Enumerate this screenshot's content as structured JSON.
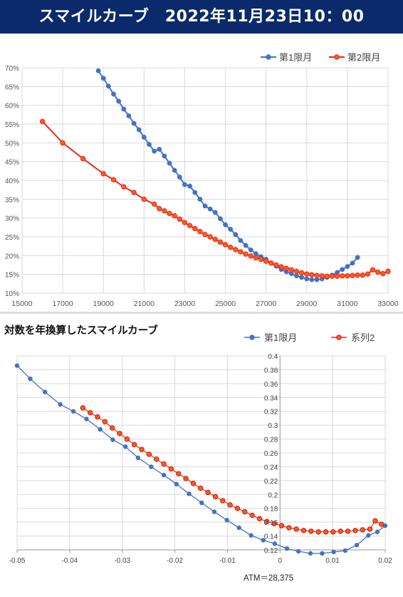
{
  "header": {
    "title": "スマイルカーブ　2022年11月23日10：00"
  },
  "colors": {
    "header_bg": "#0a2a6b",
    "series_blue": "#4472c4",
    "series_red": "#e8281a",
    "marker_orange": "#ff5a1e",
    "grid": "#d9d9d9"
  },
  "chart_data": [
    {
      "type": "line",
      "title": "",
      "xlabel": "",
      "ylabel": "",
      "xlim": [
        15000,
        33000
      ],
      "ylim": [
        0.1,
        0.7
      ],
      "x_ticks": [
        "15000",
        "17000",
        "19000",
        "21000",
        "23000",
        "25000",
        "27000",
        "29000",
        "31000",
        "33000"
      ],
      "y_ticks": [
        "10%",
        "15%",
        "20%",
        "25%",
        "30%",
        "35%",
        "40%",
        "45%",
        "50%",
        "55%",
        "60%",
        "65%",
        "70%"
      ],
      "grid": true,
      "legend_position": "top-right",
      "series": [
        {
          "name": "第1限月",
          "color": "#4472c4",
          "points": [
            [
              18750,
              0.692
            ],
            [
              19000,
              0.672
            ],
            [
              19250,
              0.651
            ],
            [
              19500,
              0.63
            ],
            [
              19750,
              0.611
            ],
            [
              20000,
              0.59
            ],
            [
              20250,
              0.572
            ],
            [
              20500,
              0.552
            ],
            [
              20750,
              0.535
            ],
            [
              21000,
              0.515
            ],
            [
              21250,
              0.496
            ],
            [
              21500,
              0.478
            ],
            [
              21750,
              0.483
            ],
            [
              22000,
              0.465
            ],
            [
              22250,
              0.446
            ],
            [
              22500,
              0.427
            ],
            [
              22750,
              0.409
            ],
            [
              23000,
              0.389
            ],
            [
              23250,
              0.385
            ],
            [
              23500,
              0.368
            ],
            [
              23750,
              0.35
            ],
            [
              24000,
              0.332
            ],
            [
              24250,
              0.324
            ],
            [
              24500,
              0.315
            ],
            [
              24750,
              0.298
            ],
            [
              25000,
              0.282
            ],
            [
              25250,
              0.27
            ],
            [
              25500,
              0.256
            ],
            [
              25750,
              0.24
            ],
            [
              26000,
              0.227
            ],
            [
              26250,
              0.215
            ],
            [
              26500,
              0.205
            ],
            [
              26750,
              0.197
            ],
            [
              27000,
              0.19
            ],
            [
              27250,
              0.18
            ],
            [
              27500,
              0.172
            ],
            [
              27750,
              0.163
            ],
            [
              28000,
              0.157
            ],
            [
              28250,
              0.152
            ],
            [
              28500,
              0.146
            ],
            [
              28750,
              0.142
            ],
            [
              29000,
              0.138
            ],
            [
              29250,
              0.136
            ],
            [
              29500,
              0.136
            ],
            [
              29750,
              0.138
            ],
            [
              30000,
              0.142
            ],
            [
              30250,
              0.148
            ],
            [
              30500,
              0.155
            ],
            [
              30750,
              0.163
            ],
            [
              31000,
              0.171
            ],
            [
              31250,
              0.18
            ],
            [
              31500,
              0.195
            ]
          ]
        },
        {
          "name": "第2限月",
          "color": "#e8281a",
          "points": [
            [
              16000,
              0.557
            ],
            [
              17000,
              0.5
            ],
            [
              18000,
              0.458
            ],
            [
              19000,
              0.418
            ],
            [
              19500,
              0.402
            ],
            [
              20000,
              0.383
            ],
            [
              20500,
              0.368
            ],
            [
              21000,
              0.35
            ],
            [
              21500,
              0.337
            ],
            [
              21750,
              0.325
            ],
            [
              22000,
              0.319
            ],
            [
              22250,
              0.312
            ],
            [
              22500,
              0.306
            ],
            [
              22750,
              0.297
            ],
            [
              23000,
              0.288
            ],
            [
              23250,
              0.28
            ],
            [
              23500,
              0.272
            ],
            [
              23750,
              0.264
            ],
            [
              24000,
              0.256
            ],
            [
              24250,
              0.25
            ],
            [
              24500,
              0.243
            ],
            [
              24750,
              0.236
            ],
            [
              25000,
              0.229
            ],
            [
              25250,
              0.222
            ],
            [
              25500,
              0.216
            ],
            [
              25750,
              0.21
            ],
            [
              26000,
              0.204
            ],
            [
              26250,
              0.199
            ],
            [
              26500,
              0.194
            ],
            [
              26750,
              0.19
            ],
            [
              27000,
              0.185
            ],
            [
              27250,
              0.18
            ],
            [
              27500,
              0.175
            ],
            [
              27750,
              0.17
            ],
            [
              28000,
              0.166
            ],
            [
              28250,
              0.162
            ],
            [
              28500,
              0.158
            ],
            [
              28750,
              0.154
            ],
            [
              29000,
              0.151
            ],
            [
              29250,
              0.149
            ],
            [
              29500,
              0.147
            ],
            [
              29750,
              0.146
            ],
            [
              30000,
              0.145
            ],
            [
              30250,
              0.145
            ],
            [
              30500,
              0.145
            ],
            [
              30750,
              0.146
            ],
            [
              31000,
              0.146
            ],
            [
              31250,
              0.147
            ],
            [
              31500,
              0.148
            ],
            [
              31750,
              0.148
            ],
            [
              32000,
              0.151
            ],
            [
              32250,
              0.162
            ],
            [
              32500,
              0.156
            ],
            [
              32750,
              0.152
            ],
            [
              33000,
              0.158
            ]
          ]
        }
      ]
    },
    {
      "type": "line",
      "title": "対数を年換算したスマイルカーブ",
      "xlabel": "",
      "ylabel": "",
      "xlim": [
        -0.05,
        0.02
      ],
      "ylim": [
        0.12,
        0.4
      ],
      "x_ticks": [
        "-0.05",
        "-0.04",
        "-0.03",
        "-0.02",
        "-0.01",
        "0",
        "0.01",
        "0.02"
      ],
      "y_ticks": [
        "0.12",
        "0.14",
        "0.16",
        "0.18",
        "0.2",
        "0.22",
        "0.24",
        "0.26",
        "0.28",
        "0.3",
        "0.32",
        "0.34",
        "0.36",
        "0.38",
        "0.4"
      ],
      "grid": true,
      "legend_position": "top",
      "annotation": "ATM＝28,375",
      "series": [
        {
          "name": "第1限月",
          "color": "#4472c4",
          "points": [
            [
              -0.05,
              0.386
            ],
            [
              -0.0475,
              0.367
            ],
            [
              -0.0447,
              0.348
            ],
            [
              -0.0418,
              0.33
            ],
            [
              -0.0393,
              0.32
            ],
            [
              -0.0368,
              0.309
            ],
            [
              -0.0342,
              0.294
            ],
            [
              -0.0318,
              0.279
            ],
            [
              -0.0294,
              0.269
            ],
            [
              -0.027,
              0.253
            ],
            [
              -0.0245,
              0.24
            ],
            [
              -0.0221,
              0.228
            ],
            [
              -0.0197,
              0.215
            ],
            [
              -0.0173,
              0.201
            ],
            [
              -0.0149,
              0.188
            ],
            [
              -0.0125,
              0.175
            ],
            [
              -0.0101,
              0.163
            ],
            [
              -0.0078,
              0.152
            ],
            [
              -0.0055,
              0.141
            ],
            [
              -0.0032,
              0.134
            ],
            [
              -0.001,
              0.129
            ],
            [
              0.0013,
              0.122
            ],
            [
              0.0035,
              0.118
            ],
            [
              0.0058,
              0.115
            ],
            [
              0.008,
              0.115
            ],
            [
              0.0102,
              0.117
            ],
            [
              0.0124,
              0.119
            ],
            [
              0.0146,
              0.127
            ],
            [
              0.0168,
              0.141
            ],
            [
              0.0185,
              0.146
            ],
            [
              0.02,
              0.155
            ]
          ]
        },
        {
          "name": "系列2",
          "color": "#e8281a",
          "points": [
            [
              -0.0375,
              0.325
            ],
            [
              -0.0361,
              0.318
            ],
            [
              -0.0347,
              0.312
            ],
            [
              -0.0333,
              0.305
            ],
            [
              -0.0319,
              0.296
            ],
            [
              -0.0305,
              0.288
            ],
            [
              -0.0291,
              0.28
            ],
            [
              -0.0277,
              0.272
            ],
            [
              -0.0263,
              0.265
            ],
            [
              -0.0249,
              0.258
            ],
            [
              -0.0235,
              0.251
            ],
            [
              -0.0221,
              0.244
            ],
            [
              -0.0207,
              0.237
            ],
            [
              -0.0193,
              0.23
            ],
            [
              -0.0179,
              0.223
            ],
            [
              -0.0165,
              0.216
            ],
            [
              -0.0151,
              0.209
            ],
            [
              -0.0137,
              0.203
            ],
            [
              -0.0123,
              0.197
            ],
            [
              -0.0109,
              0.191
            ],
            [
              -0.0095,
              0.185
            ],
            [
              -0.0081,
              0.18
            ],
            [
              -0.0067,
              0.175
            ],
            [
              -0.0053,
              0.17
            ],
            [
              -0.0039,
              0.165
            ],
            [
              -0.0025,
              0.161
            ],
            [
              -0.0011,
              0.158
            ],
            [
              0.0003,
              0.155
            ],
            [
              0.0017,
              0.152
            ],
            [
              0.0031,
              0.15
            ],
            [
              0.0045,
              0.148
            ],
            [
              0.0059,
              0.147
            ],
            [
              0.0073,
              0.146
            ],
            [
              0.0087,
              0.146
            ],
            [
              0.0101,
              0.146
            ],
            [
              0.0115,
              0.147
            ],
            [
              0.0129,
              0.147
            ],
            [
              0.0143,
              0.148
            ],
            [
              0.0157,
              0.149
            ],
            [
              0.0171,
              0.15
            ],
            [
              0.0181,
              0.162
            ],
            [
              0.0193,
              0.157
            ]
          ]
        }
      ]
    }
  ]
}
